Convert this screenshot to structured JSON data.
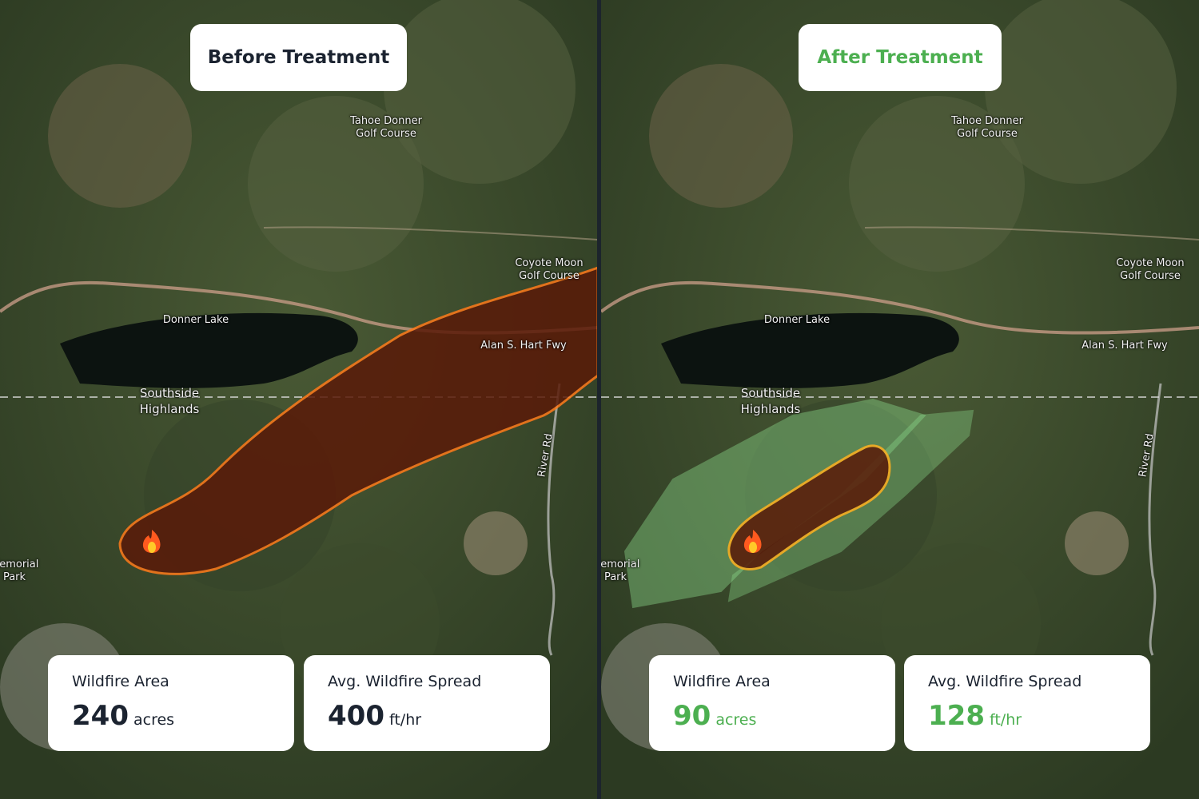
{
  "map": {
    "labels": [
      "Tahoe Donner Golf Course",
      "Coyote Moon Golf Course",
      "Donner Lake",
      "Alan S. Hart Fwy",
      "Southside Highlands",
      "River Rd",
      "Memorial Park"
    ]
  },
  "panels": [
    {
      "title": "Before Treatment",
      "stats": [
        {
          "label": "Wildfire Area",
          "value": 240,
          "unit": "acres"
        },
        {
          "label": "Avg. Wildfire Spread",
          "value": 400,
          "unit": "ft/hr"
        }
      ]
    },
    {
      "title": "After Treatment",
      "stats": [
        {
          "label": "Wildfire Area",
          "value": 90,
          "unit": "acres"
        },
        {
          "label": "Avg. Wildfire Spread",
          "value": 128,
          "unit": "ft/hr"
        }
      ]
    }
  ]
}
